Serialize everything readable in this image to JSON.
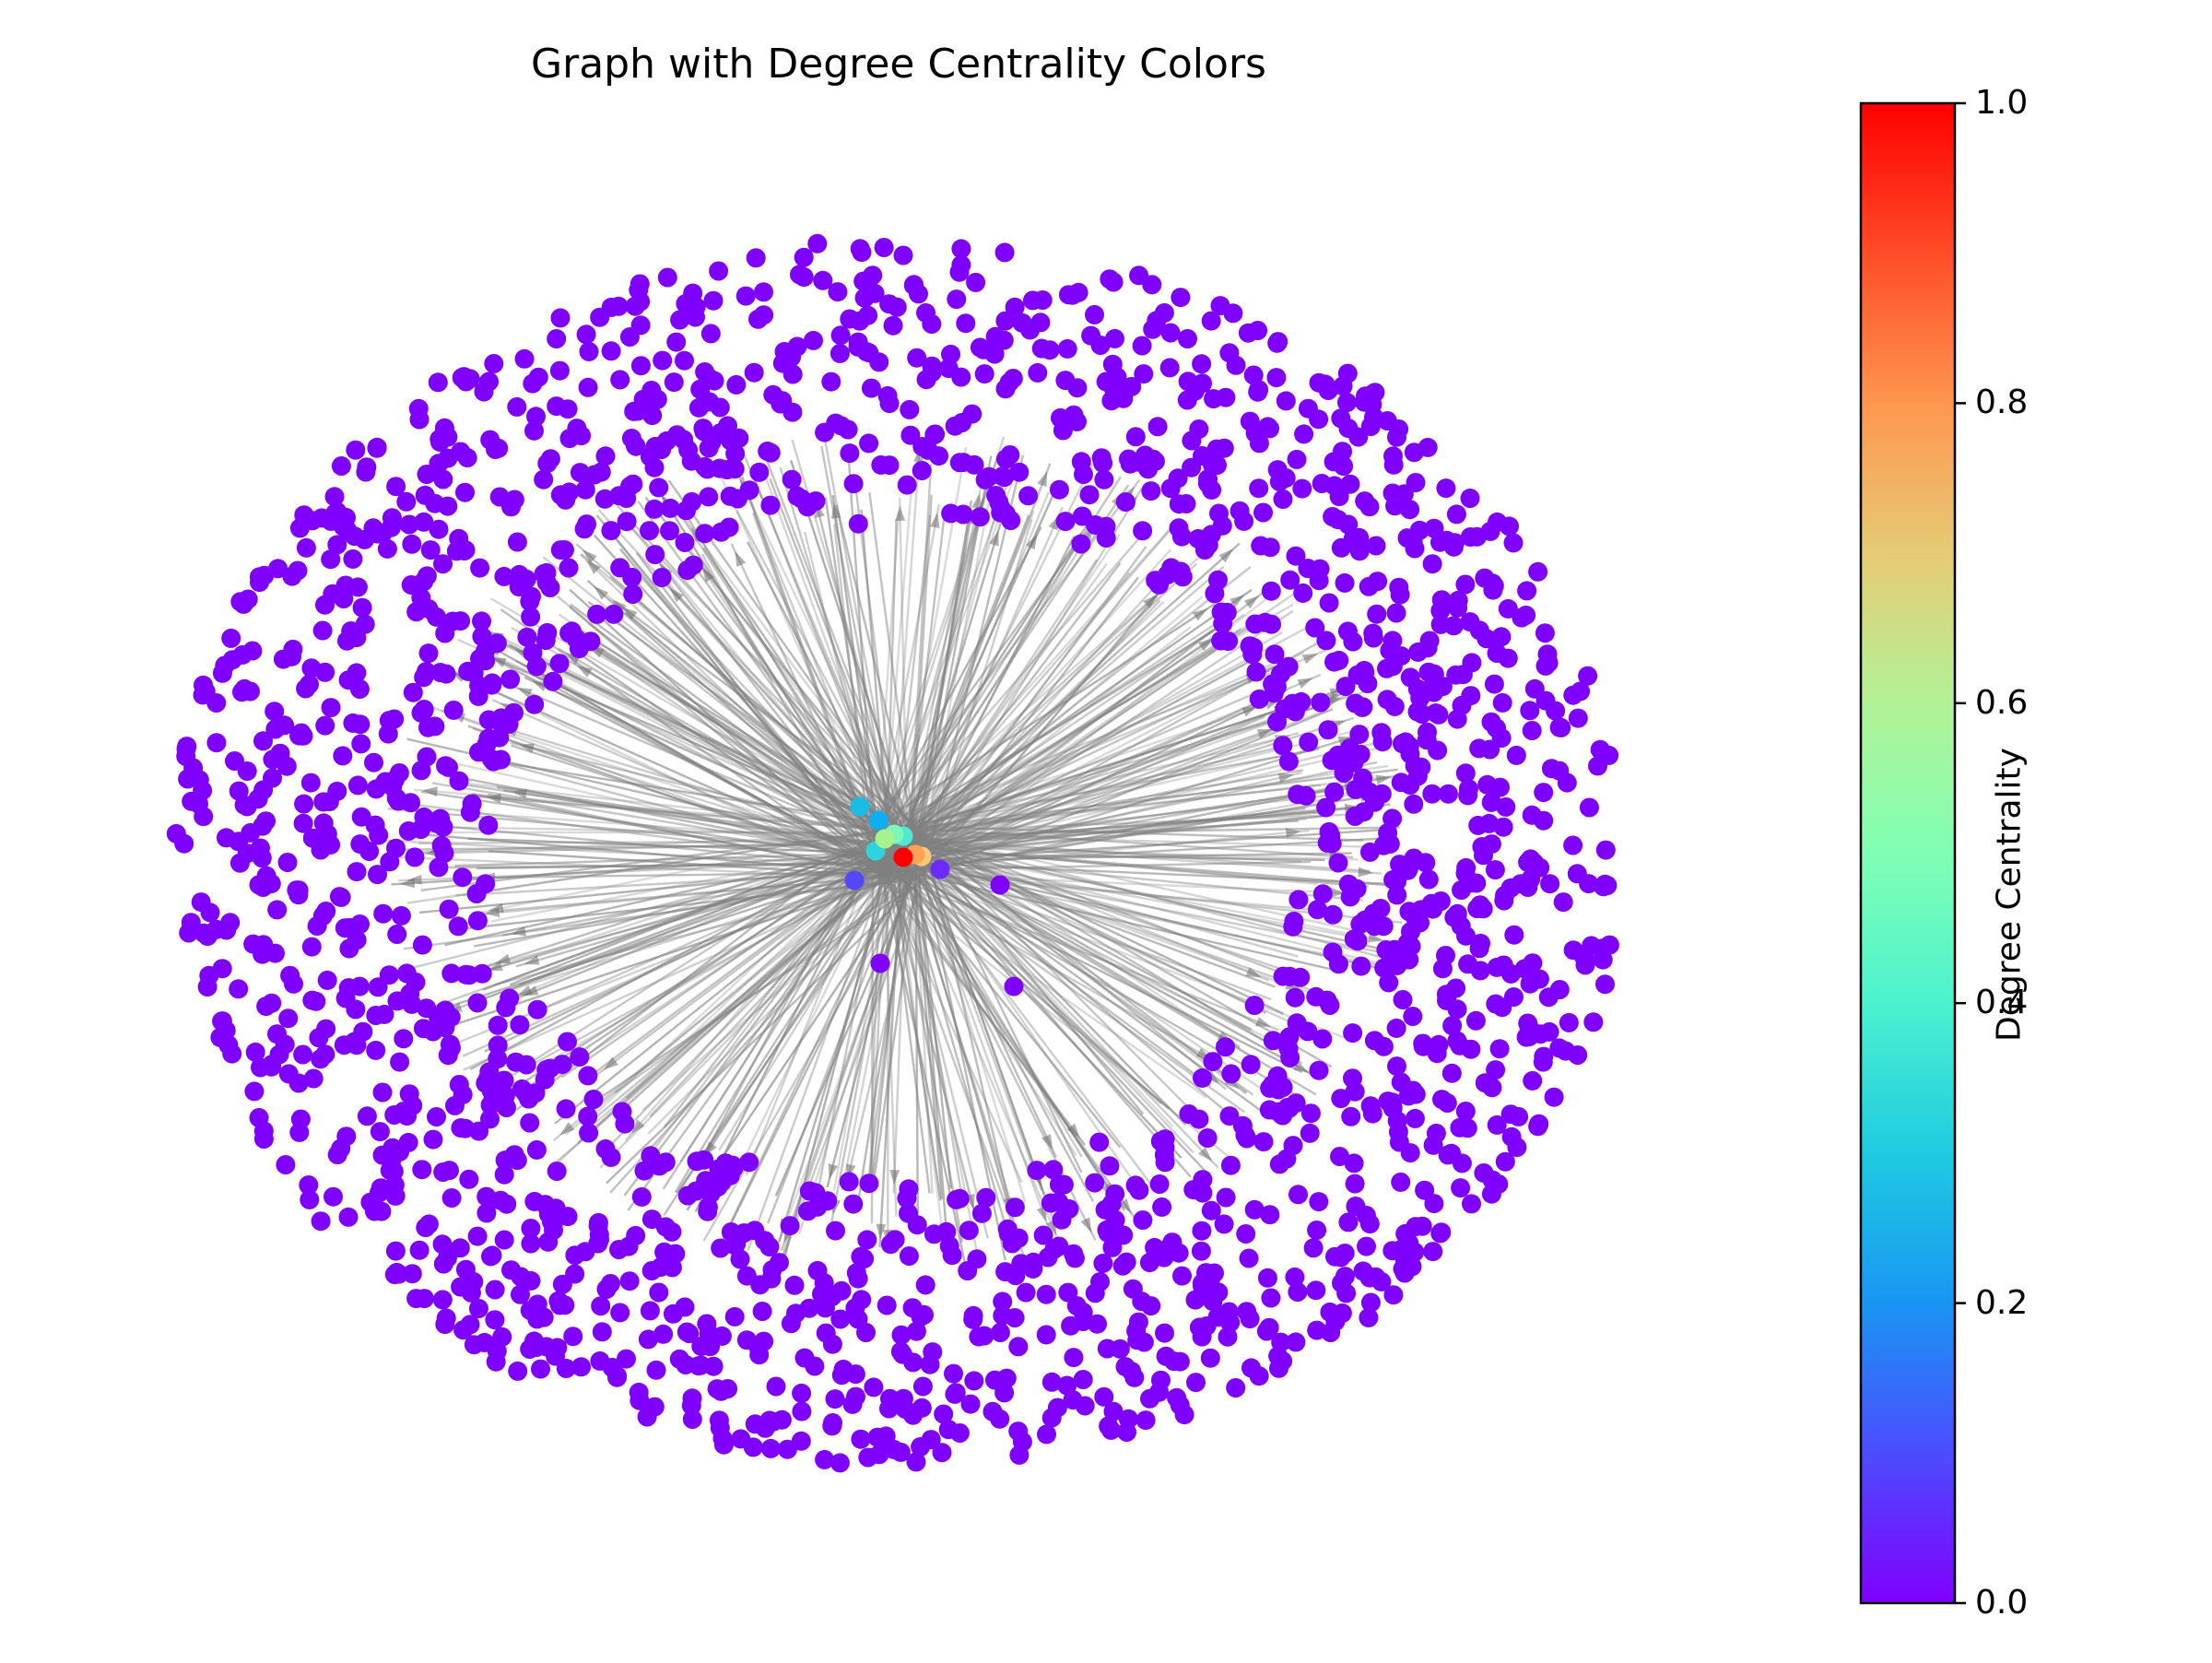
{
  "title": "Graph with Degree Centrality Colors",
  "colorbar": {
    "label": "Degree Centrality",
    "colormap": "rainbow",
    "range": [
      0.0,
      1.0
    ],
    "ticks": [
      "0.0",
      "0.2",
      "0.4",
      "0.6",
      "0.8",
      "1.0"
    ],
    "tick_values": [
      0.0,
      0.2,
      0.4,
      0.6,
      0.8,
      1.0
    ],
    "gradient_colors": [
      "#8000ff",
      "#4c4cfe",
      "#1996f3",
      "#1ecbe1",
      "#4cf2ce",
      "#80ffb4",
      "#b2f296",
      "#e6cb74",
      "#ff964f",
      "#ff4c27",
      "#ff0000"
    ]
  },
  "colors": {
    "outer_node": "#7f00ff",
    "edge": "#808080",
    "hub_red": "#ff0000",
    "hub_orange": "#ff9a55"
  },
  "diagram": {
    "type": "network-graph",
    "layout": "spring-radial",
    "edge_color": "#808080",
    "center_nodes": [
      {
        "centrality": 1.0,
        "color": "#ff0000"
      },
      {
        "centrality": 0.78,
        "color": "#ffa256"
      },
      {
        "centrality": 0.72,
        "color": "#f7c978"
      },
      {
        "centrality": 0.55,
        "color": "#a6f28f"
      },
      {
        "centrality": 0.47,
        "color": "#7cf7b9"
      },
      {
        "centrality": 0.4,
        "color": "#4fe9d2"
      },
      {
        "centrality": 0.33,
        "color": "#2ed3dd"
      },
      {
        "centrality": 0.27,
        "color": "#18bde6"
      },
      {
        "centrality": 0.22,
        "color": "#10aef0"
      },
      {
        "centrality": 0.1,
        "color": "#5548fc"
      },
      {
        "centrality": 0.06,
        "color": "#6a2bfe"
      }
    ],
    "peripheral_node_centrality": 0.0
  }
}
